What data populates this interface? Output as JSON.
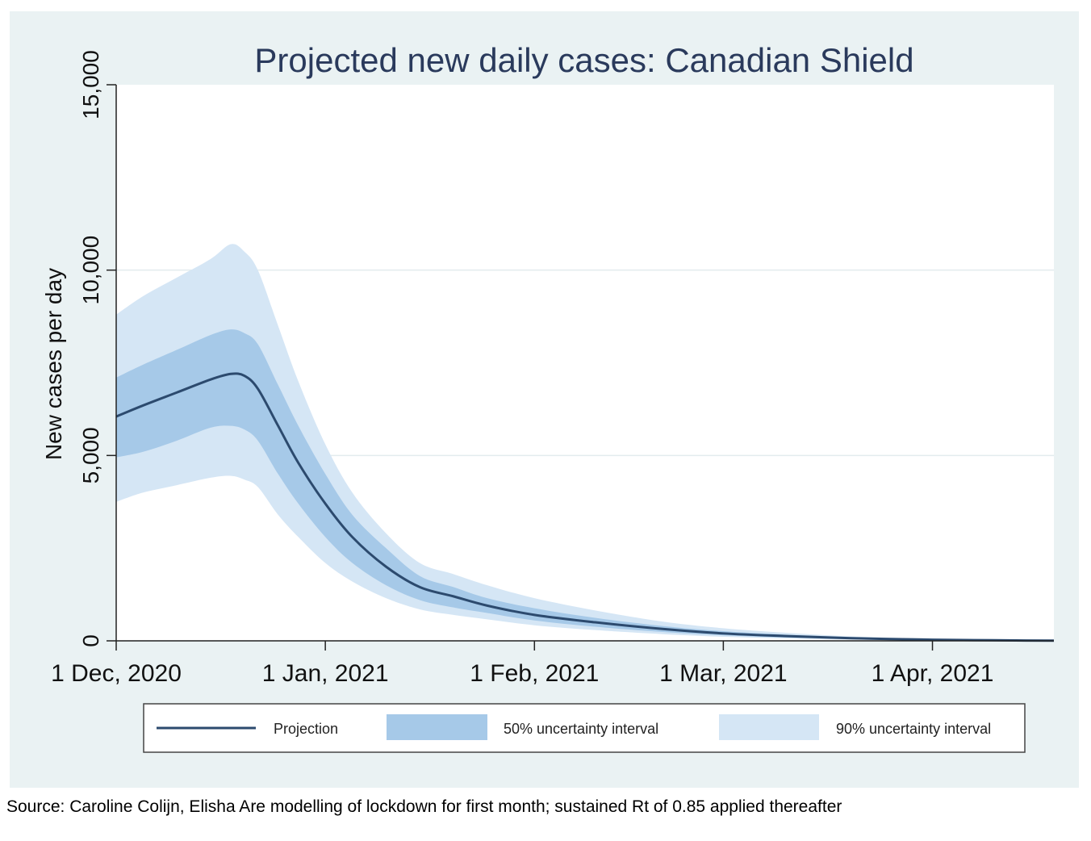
{
  "chart_data": {
    "type": "area",
    "title": "Projected new daily cases: Canadian Shield",
    "xlabel": "",
    "ylabel": "New cases per day",
    "x_ticks": [
      {
        "date": "2020-12-01",
        "label": "1 Dec, 2020"
      },
      {
        "date": "2021-01-01",
        "label": "1 Jan, 2021"
      },
      {
        "date": "2021-02-01",
        "label": "1 Feb, 2021"
      },
      {
        "date": "2021-03-01",
        "label": "1 Mar, 2021"
      },
      {
        "date": "2021-04-01",
        "label": "1 Apr, 2021"
      }
    ],
    "y_ticks": [
      {
        "value": 0,
        "label": "0"
      },
      {
        "value": 5000,
        "label": "5,000"
      },
      {
        "value": 10000,
        "label": "10,000"
      },
      {
        "value": 15000,
        "label": "15,000"
      }
    ],
    "ylim": [
      0,
      15000
    ],
    "xlim": [
      "2020-12-01",
      "2021-04-19"
    ],
    "grid": "horizontal",
    "legend_position": "bottom",
    "legend": [
      "Projection",
      "50% uncertainty interval",
      "90% uncertainty interval"
    ],
    "colors": {
      "projection": "#2c4a6e",
      "band50": "#a6c9e8",
      "band90": "#d5e6f5"
    },
    "x": [
      "2020-12-01",
      "2020-12-05",
      "2020-12-10",
      "2020-12-15",
      "2020-12-18",
      "2020-12-20",
      "2020-12-22",
      "2020-12-25",
      "2020-12-28",
      "2021-01-01",
      "2021-01-05",
      "2021-01-10",
      "2021-01-15",
      "2021-01-20",
      "2021-01-25",
      "2021-02-01",
      "2021-02-10",
      "2021-02-20",
      "2021-03-01",
      "2021-03-10",
      "2021-03-20",
      "2021-04-01",
      "2021-04-10",
      "2021-04-19"
    ],
    "series": [
      {
        "name": "Projection",
        "values": [
          6050,
          6350,
          6700,
          7050,
          7200,
          7150,
          6800,
          5800,
          4800,
          3700,
          2800,
          2000,
          1450,
          1200,
          950,
          700,
          500,
          320,
          200,
          130,
          70,
          30,
          15,
          5
        ]
      },
      {
        "name": "50% uncertainty interval",
        "lower": [
          4950,
          5100,
          5400,
          5750,
          5800,
          5700,
          5400,
          4500,
          3700,
          2800,
          2100,
          1500,
          1100,
          900,
          750,
          550,
          380,
          240,
          150,
          90,
          50,
          20,
          10,
          3
        ],
        "upper": [
          7100,
          7450,
          7850,
          8250,
          8400,
          8300,
          8000,
          6900,
          5800,
          4500,
          3400,
          2500,
          1750,
          1450,
          1150,
          880,
          620,
          400,
          260,
          170,
          90,
          40,
          20,
          7
        ]
      },
      {
        "name": "90% uncertainty interval",
        "lower": [
          3750,
          4000,
          4200,
          4400,
          4450,
          4350,
          4150,
          3400,
          2800,
          2100,
          1600,
          1150,
          850,
          700,
          580,
          420,
          290,
          180,
          110,
          70,
          35,
          15,
          7,
          2
        ],
        "upper": [
          8800,
          9300,
          9800,
          10300,
          10700,
          10500,
          10000,
          8500,
          7000,
          5300,
          4000,
          2900,
          2100,
          1800,
          1500,
          1150,
          820,
          520,
          340,
          220,
          120,
          55,
          25,
          9
        ]
      }
    ]
  },
  "source_note": "Source: Caroline Colijn, Elisha Are modelling of lockdown for first month; sustained Rt of 0.85 applied thereafter"
}
